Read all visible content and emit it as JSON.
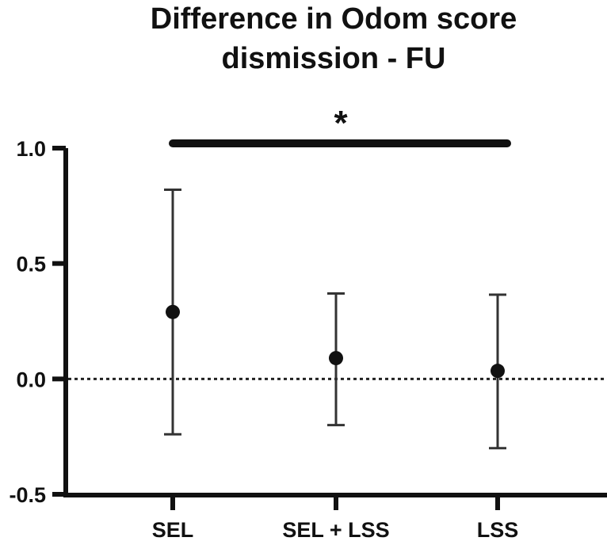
{
  "chart_data": {
    "type": "scatter",
    "title_lines": [
      "Difference in Odom score",
      "dismission - FU"
    ],
    "xlabel": "",
    "ylabel": "",
    "categories": [
      "SEL",
      "SEL + LSS",
      "LSS"
    ],
    "series": [
      {
        "values": [
          0.29,
          0.09,
          0.035
        ],
        "error_low": [
          -0.24,
          -0.2,
          -0.3
        ],
        "error_high": [
          0.82,
          0.37,
          0.365
        ]
      }
    ],
    "ylim": [
      -0.5,
      1.0
    ],
    "yticks": [
      1.0,
      0.5,
      0.0,
      -0.5
    ],
    "ytick_labels": [
      "1.0",
      "0.5",
      "0.0",
      "-0.5"
    ],
    "reference_line": 0.0,
    "significance": {
      "label": "*",
      "from": "SEL",
      "to": "LSS",
      "y": 1.02
    },
    "grid": false,
    "legend": "none"
  }
}
